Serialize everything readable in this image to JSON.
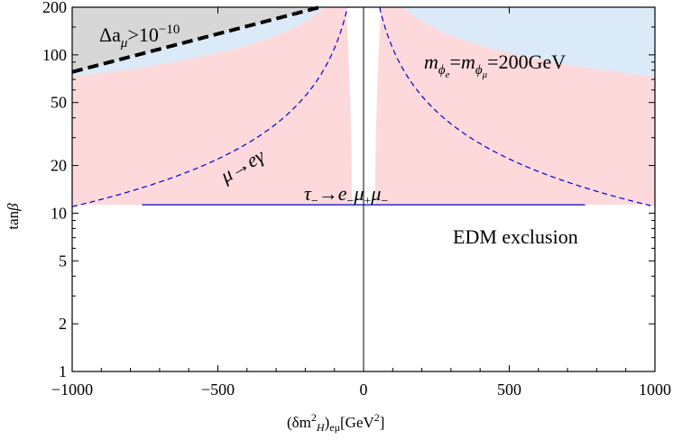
{
  "chart_data": {
    "type": "area",
    "xlabel": {
      "main": "(δm",
      "sup": "2",
      "sub": "H",
      "close": ")",
      "sub2": "eμ",
      "units": "[GeV",
      "units_sup": "2",
      "units_close": "]"
    },
    "ylabel": {
      "main": "tan",
      "greek": "β"
    },
    "x_range": [
      -1000,
      1000
    ],
    "y_range": [
      1,
      200
    ],
    "y_scale": "log",
    "x_ticks": [
      -1000,
      -500,
      0,
      500,
      1000
    ],
    "x_tick_labels": [
      "−1000",
      "−500",
      "0",
      "500",
      "1000"
    ],
    "y_ticks": [
      1,
      2,
      5,
      10,
      20,
      50,
      100,
      200
    ],
    "y_tick_labels": [
      "1",
      "2",
      "5",
      "10",
      "20",
      "50",
      "100",
      "200"
    ],
    "colors": {
      "blue_region": "#dbeaf8",
      "red_region": "#fdd9dc",
      "gray_region": "#d7d7d7",
      "mu_e_gamma_line": "#0000cc",
      "tau_line": "#0000cc",
      "g2_boundary": "#000000",
      "axis": "#000000"
    },
    "annotations": {
      "g2": {
        "text": "Δa",
        "sub": "μ",
        "gt": ">10",
        "sup": "−10"
      },
      "mass": {
        "m1": "m",
        "phi1": "ϕ",
        "e": "e",
        "eq1": "=",
        "m2": "m",
        "phi2": "ϕ",
        "mu": "μ",
        "value": "=200GeV"
      },
      "mu_e_gamma": "μ→eγ",
      "tau": {
        "tau": "τ",
        "m1": "−",
        "arrow": "→",
        "e": "e",
        "m2": "−",
        "mu1": "μ",
        "p": "+",
        "mu2": "μ",
        "m3": "−"
      },
      "edm": "EDM exclusion"
    },
    "series": [
      {
        "name": "μ→eγ",
        "style": "dashed",
        "k": 11000
      },
      {
        "name": "τ−→e−μ+μ−",
        "style": "solid",
        "y": 11.3,
        "x_extent": [
          -760,
          760
        ]
      },
      {
        "name": "Δaμ>10−10",
        "style": "thick-dashed",
        "y0": 78,
        "a": 0.0117,
        "x_end": -150
      },
      {
        "name": "EDM exclusion",
        "lower_k": 2300,
        "upper_y": 11.3,
        "gap_near_zero": 40
      }
    ]
  }
}
